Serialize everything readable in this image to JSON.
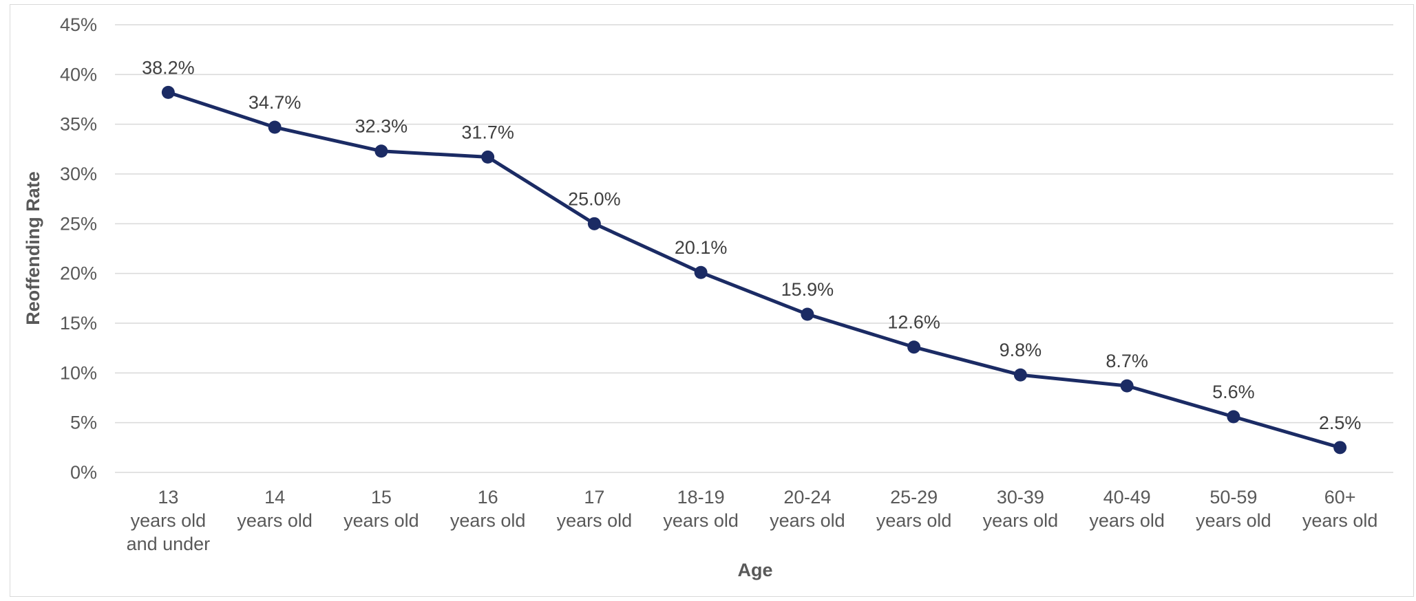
{
  "chart_data": {
    "type": "line",
    "title": "",
    "xlabel": "Age",
    "ylabel": "Reoffending Rate",
    "ylim": [
      0,
      45
    ],
    "ytick_step": 5,
    "ytick_format": "percent",
    "grid": true,
    "legend": "none",
    "categories": [
      [
        "13",
        "years old",
        "and under"
      ],
      [
        "14",
        "years old"
      ],
      [
        "15",
        "years old"
      ],
      [
        "16",
        "years old"
      ],
      [
        "17",
        "years old"
      ],
      [
        "18-19",
        "years old"
      ],
      [
        "20-24",
        "years old"
      ],
      [
        "25-29",
        "years old"
      ],
      [
        "30-39",
        "years old"
      ],
      [
        "40-49",
        "years old"
      ],
      [
        "50-59",
        "years old"
      ],
      [
        "60+",
        "years old"
      ]
    ],
    "series": [
      {
        "values": [
          38.2,
          34.7,
          32.3,
          31.7,
          25.0,
          20.1,
          15.9,
          12.6,
          9.8,
          8.7,
          5.6,
          2.5
        ],
        "labels": [
          "38.2%",
          "34.7%",
          "32.3%",
          "31.7%",
          "25.0%",
          "20.1%",
          "15.9%",
          "12.6%",
          "9.8%",
          "8.7%",
          "5.6%",
          "2.5%"
        ],
        "color": "#1b2b64"
      }
    ],
    "ytick_labels": [
      "0%",
      "5%",
      "10%",
      "15%",
      "20%",
      "25%",
      "30%",
      "35%",
      "40%",
      "45%"
    ]
  }
}
